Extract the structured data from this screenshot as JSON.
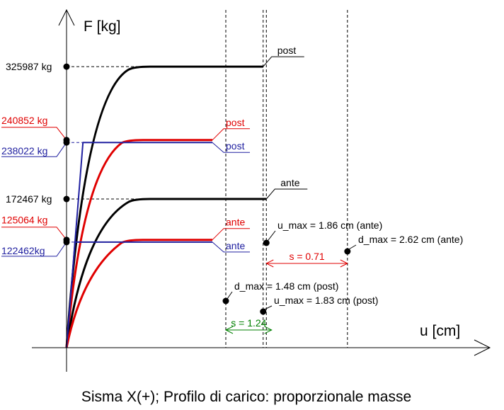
{
  "chart_data": {
    "type": "line",
    "title": "",
    "caption": "Sisma X(+); Profilo di carico: proporzionale masse",
    "xlabel": "u [cm]",
    "ylabel": "F [kg]",
    "grid": false,
    "colors": {
      "black": "#000000",
      "red": "#e00000",
      "blue": "#2020a0",
      "green": "#008000"
    },
    "curves": [
      {
        "name": "",
        "color": "black",
        "plateau": 325987,
        "label": "post"
      },
      {
        "name": "",
        "color": "red",
        "plateau": 240852,
        "label": "post"
      },
      {
        "name": "",
        "color": "blue",
        "plateau": 238022,
        "label": "post"
      },
      {
        "name": "",
        "color": "black",
        "plateau": 172467,
        "label": "ante"
      },
      {
        "name": "",
        "color": "red",
        "plateau": 125064,
        "label": "ante"
      },
      {
        "name": "",
        "color": "blue",
        "plateau": 122462,
        "label": "ante"
      }
    ],
    "y_labels": [
      {
        "text": "325987 kg",
        "value": 325987,
        "color": "black"
      },
      {
        "text": "240852 kg",
        "value": 240852,
        "color": "red"
      },
      {
        "text": "238022 kg",
        "value": 238022,
        "color": "blue"
      },
      {
        "text": "172467 kg",
        "value": 172467,
        "color": "black"
      },
      {
        "text": "125064 kg",
        "value": 125064,
        "color": "red"
      },
      {
        "text": "122462kg",
        "value": 122462,
        "color": "blue"
      }
    ],
    "markers": [
      {
        "text": "u_max = 1.86 cm (ante)",
        "u": 1.86
      },
      {
        "text": "d_max = 2.62 cm (ante)",
        "u": 2.62
      },
      {
        "text": "d_max = 1.48 cm (post)",
        "u": 1.48
      },
      {
        "text": "u_max = 1.83 cm (post)",
        "u": 1.83
      }
    ],
    "spans": [
      {
        "text": "s = 0.71",
        "value": 0.71,
        "color": "red"
      },
      {
        "text": "s = 1.24",
        "value": 1.24,
        "color": "green"
      }
    ]
  }
}
